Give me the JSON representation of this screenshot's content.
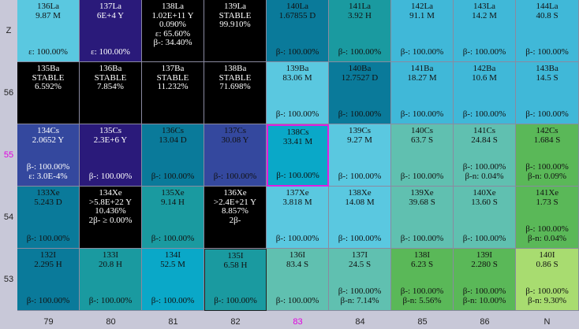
{
  "y_labels": [
    "Z",
    "56",
    "55",
    "54",
    "53"
  ],
  "highlight_y": "55",
  "x_labels": [
    "79",
    "80",
    "81",
    "82",
    "83",
    "84",
    "85",
    "86",
    "N"
  ],
  "highlight_x": "83",
  "colors": {
    "black": "#000000",
    "indigo": "#2a1a7a",
    "navy": "#34489e",
    "teal_dark": "#0a7a9a",
    "teal": "#1a9aa0",
    "cyan": "#0aa8c8",
    "sky": "#5ac8e0",
    "aqua": "#40b8d8",
    "seafoam": "#60c0b0",
    "green": "#5ab858",
    "lime": "#a8dc70",
    "highlight": "#e000e0"
  },
  "rows": [
    [
      {
        "name": "136La",
        "hl": "9.87 M",
        "lines": [],
        "bottom": [
          "ε: 100.00%"
        ],
        "color": "sky"
      },
      {
        "name": "137La",
        "hl": "6E+4 Y",
        "lines": [],
        "bottom": [
          "ε: 100.00%"
        ],
        "color": "indigo",
        "dark": true
      },
      {
        "name": "138La",
        "hl": "1.02E+11 Y",
        "lines": [
          "0.090%",
          "ε: 65.60%",
          "β-: 34.40%"
        ],
        "bottom": [],
        "color": "black",
        "dark": true
      },
      {
        "name": "139La",
        "hl": "STABLE",
        "lines": [
          "99.910%"
        ],
        "bottom": [],
        "color": "black",
        "dark": true
      },
      {
        "name": "140La",
        "hl": "1.67855 D",
        "lines": [],
        "bottom": [
          "β-: 100.00%"
        ],
        "color": "teal_dark"
      },
      {
        "name": "141La",
        "hl": "3.92 H",
        "lines": [],
        "bottom": [
          "β-: 100.00%"
        ],
        "color": "teal"
      },
      {
        "name": "142La",
        "hl": "91.1 M",
        "lines": [],
        "bottom": [
          "β-: 100.00%"
        ],
        "color": "aqua"
      },
      {
        "name": "143La",
        "hl": "14.2 M",
        "lines": [],
        "bottom": [
          "β-: 100.00%"
        ],
        "color": "aqua"
      },
      {
        "name": "144La",
        "hl": "40.8 S",
        "lines": [],
        "bottom": [
          "β-: 100.00%"
        ],
        "color": "aqua"
      }
    ],
    [
      {
        "name": "135Ba",
        "hl": "STABLE",
        "lines": [
          "6.592%"
        ],
        "bottom": [],
        "color": "black",
        "dark": true
      },
      {
        "name": "136Ba",
        "hl": "STABLE",
        "lines": [
          "7.854%"
        ],
        "bottom": [],
        "color": "black",
        "dark": true
      },
      {
        "name": "137Ba",
        "hl": "STABLE",
        "lines": [
          "11.232%"
        ],
        "bottom": [],
        "color": "black",
        "dark": true
      },
      {
        "name": "138Ba",
        "hl": "STABLE",
        "lines": [
          "71.698%"
        ],
        "bottom": [],
        "color": "black",
        "dark": true
      },
      {
        "name": "139Ba",
        "hl": "83.06 M",
        "lines": [],
        "bottom": [
          "β-: 100.00%"
        ],
        "color": "sky"
      },
      {
        "name": "140Ba",
        "hl": "12.7527 D",
        "lines": [],
        "bottom": [
          "β-: 100.00%"
        ],
        "color": "teal_dark"
      },
      {
        "name": "141Ba",
        "hl": "18.27 M",
        "lines": [],
        "bottom": [
          "β-: 100.00%"
        ],
        "color": "aqua"
      },
      {
        "name": "142Ba",
        "hl": "10.6 M",
        "lines": [],
        "bottom": [
          "β-: 100.00%"
        ],
        "color": "aqua"
      },
      {
        "name": "143Ba",
        "hl": "14.5 S",
        "lines": [],
        "bottom": [
          "β-: 100.00%"
        ],
        "color": "aqua"
      }
    ],
    [
      {
        "name": "134Cs",
        "hl": "2.0652 Y",
        "lines": [],
        "bottom": [
          "β-: 100.00%",
          "ε: 3.0E-4%"
        ],
        "color": "navy",
        "dark": true
      },
      {
        "name": "135Cs",
        "hl": "2.3E+6 Y",
        "lines": [],
        "bottom": [
          "β-: 100.00%"
        ],
        "color": "indigo",
        "dark": true
      },
      {
        "name": "136Cs",
        "hl": "13.04 D",
        "lines": [],
        "bottom": [
          "β-: 100.00%"
        ],
        "color": "teal_dark"
      },
      {
        "name": "137Cs",
        "hl": "30.08 Y",
        "lines": [],
        "bottom": [
          "β-: 100.00%"
        ],
        "color": "navy"
      },
      {
        "name": "138Cs",
        "hl": "33.41 M",
        "lines": [],
        "bottom": [
          "β-: 100.00%"
        ],
        "color": "cyan",
        "sel": true
      },
      {
        "name": "139Cs",
        "hl": "9.27 M",
        "lines": [],
        "bottom": [
          "β-: 100.00%"
        ],
        "color": "sky"
      },
      {
        "name": "140Cs",
        "hl": "63.7 S",
        "lines": [],
        "bottom": [
          "β-: 100.00%"
        ],
        "color": "seafoam"
      },
      {
        "name": "141Cs",
        "hl": "24.84 S",
        "lines": [],
        "bottom": [
          "β-: 100.00%",
          "β-n: 0.04%"
        ],
        "color": "seafoam"
      },
      {
        "name": "142Cs",
        "hl": "1.684 S",
        "lines": [],
        "bottom": [
          "β-: 100.00%",
          "β-n: 0.09%"
        ],
        "color": "green"
      }
    ],
    [
      {
        "name": "133Xe",
        "hl": "5.243 D",
        "lines": [],
        "bottom": [
          "β-: 100.00%"
        ],
        "color": "teal_dark"
      },
      {
        "name": "134Xe",
        "hl": ">5.8E+22 Y",
        "lines": [
          "10.436%",
          "2β- ≥ 0.00%"
        ],
        "bottom": [],
        "color": "black",
        "dark": true
      },
      {
        "name": "135Xe",
        "hl": "9.14 H",
        "lines": [],
        "bottom": [
          "β-: 100.00%"
        ],
        "color": "teal"
      },
      {
        "name": "136Xe",
        "hl": ">2.4E+21 Y",
        "lines": [
          "8.857%",
          "2β-"
        ],
        "bottom": [],
        "color": "black",
        "dark": true
      },
      {
        "name": "137Xe",
        "hl": "3.818 M",
        "lines": [],
        "bottom": [
          "β-: 100.00%"
        ],
        "color": "sky"
      },
      {
        "name": "138Xe",
        "hl": "14.08 M",
        "lines": [],
        "bottom": [
          "β-: 100.00%"
        ],
        "color": "sky"
      },
      {
        "name": "139Xe",
        "hl": "39.68 S",
        "lines": [],
        "bottom": [
          "β-: 100.00%"
        ],
        "color": "seafoam"
      },
      {
        "name": "140Xe",
        "hl": "13.60 S",
        "lines": [],
        "bottom": [
          "β-: 100.00%"
        ],
        "color": "seafoam"
      },
      {
        "name": "141Xe",
        "hl": "1.73 S",
        "lines": [],
        "bottom": [
          "β-: 100.00%",
          "β-n: 0.04%"
        ],
        "color": "green"
      }
    ],
    [
      {
        "name": "132I",
        "hl": "2.295 H",
        "lines": [],
        "bottom": [
          "β-: 100.00%"
        ],
        "color": "teal_dark"
      },
      {
        "name": "133I",
        "hl": "20.8 H",
        "lines": [],
        "bottom": [
          "β-: 100.00%"
        ],
        "color": "teal"
      },
      {
        "name": "134I",
        "hl": "52.5 M",
        "lines": [],
        "bottom": [
          "β-: 100.00%"
        ],
        "color": "cyan"
      },
      {
        "name": "135I",
        "hl": "6.58 H",
        "lines": [],
        "bottom": [
          "β-: 100.00%"
        ],
        "color": "teal",
        "frame": true
      },
      {
        "name": "136I",
        "hl": "83.4 S",
        "lines": [],
        "bottom": [
          "β-: 100.00%"
        ],
        "color": "seafoam"
      },
      {
        "name": "137I",
        "hl": "24.5 S",
        "lines": [],
        "bottom": [
          "β-: 100.00%",
          "β-n: 7.14%"
        ],
        "color": "seafoam"
      },
      {
        "name": "138I",
        "hl": "6.23 S",
        "lines": [],
        "bottom": [
          "β-: 100.00%",
          "β-n: 5.56%"
        ],
        "color": "green"
      },
      {
        "name": "139I",
        "hl": "2.280 S",
        "lines": [],
        "bottom": [
          "β-: 100.00%",
          "β-n: 10.00%"
        ],
        "color": "green"
      },
      {
        "name": "140I",
        "hl": "0.86 S",
        "lines": [],
        "bottom": [
          "β-: 100.00%",
          "β-n: 9.30%"
        ],
        "color": "lime"
      }
    ]
  ]
}
